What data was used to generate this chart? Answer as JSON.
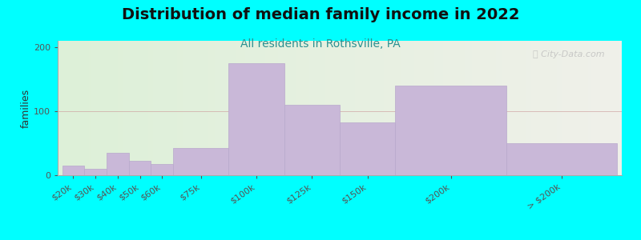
{
  "title": "Distribution of median family income in 2022",
  "subtitle": "All residents in Rothsville, PA",
  "ylabel": "families",
  "background_color": "#00FFFF",
  "bar_color": "#c9b8d8",
  "bar_edge_color": "#b8a8cc",
  "watermark": "ⓘ City-Data.com",
  "title_fontsize": 14,
  "subtitle_fontsize": 10,
  "ylabel_fontsize": 9,
  "tick_fontsize": 8,
  "ylim": [
    0,
    210
  ],
  "yticks": [
    0,
    100,
    200
  ],
  "bin_lefts": [
    0,
    10,
    20,
    30,
    40,
    50,
    75,
    100,
    125,
    150,
    200
  ],
  "bin_widths": [
    10,
    10,
    10,
    10,
    10,
    25,
    25,
    25,
    25,
    50,
    50
  ],
  "values": [
    15,
    10,
    35,
    22,
    17,
    42,
    175,
    110,
    82,
    140,
    50
  ],
  "tick_positions": [
    5,
    15,
    25,
    35,
    45,
    62.5,
    87.5,
    112.5,
    137.5,
    175,
    225
  ],
  "tick_labels": [
    "$20k",
    "$30k",
    "$40k",
    "$50k",
    "$60k",
    "$75k",
    "$100k",
    "$125k",
    "$150k",
    "$200k",
    "> $200k"
  ],
  "xlim": [
    -2,
    252
  ]
}
